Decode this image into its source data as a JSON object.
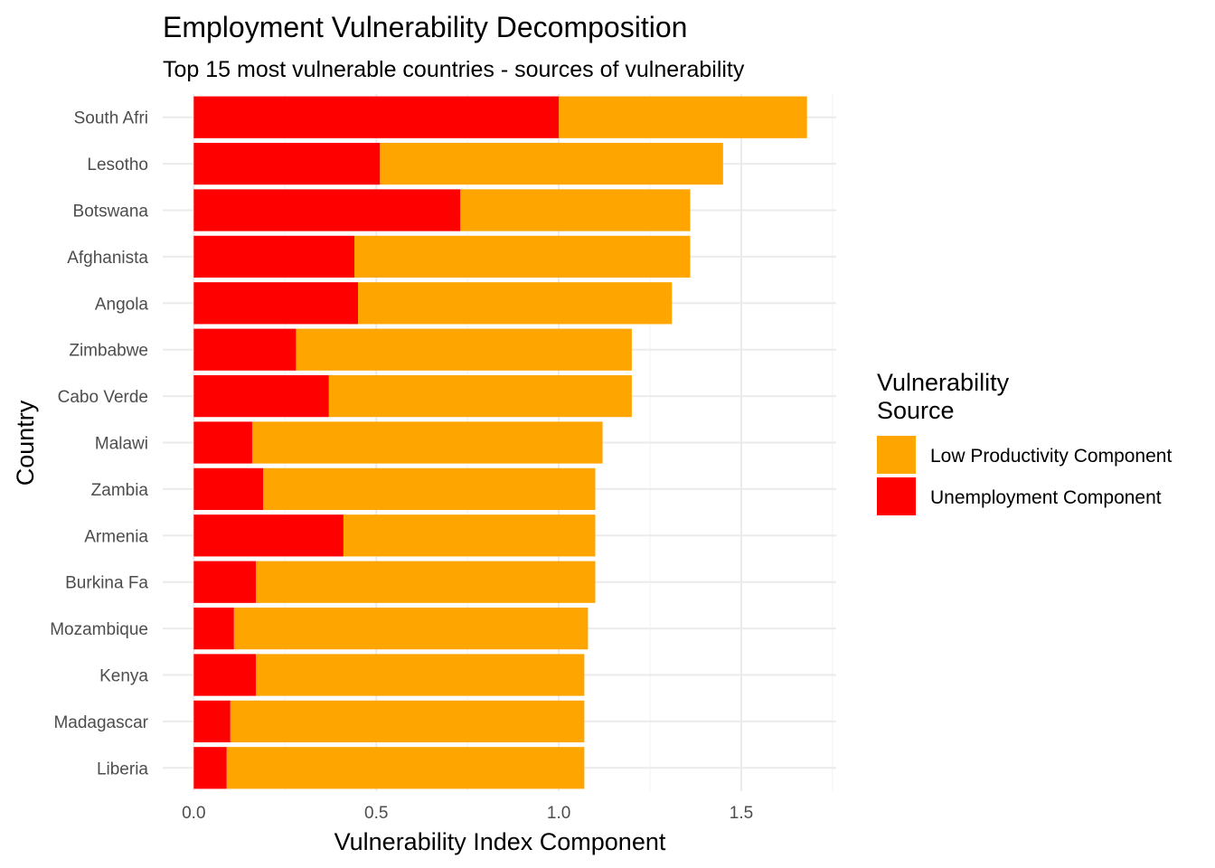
{
  "chart_data": {
    "type": "bar",
    "orientation": "horizontal",
    "stacked": true,
    "title": "Employment Vulnerability Decomposition",
    "subtitle": "Top 15 most vulnerable countries - sources of vulnerability",
    "xlabel": "Vulnerability Index Component",
    "ylabel": "Country",
    "xlim": [
      -0.085,
      1.76
    ],
    "x_ticks": [
      0.0,
      0.5,
      1.0,
      1.5
    ],
    "x_tick_labels": [
      "0.0",
      "0.5",
      "1.0",
      "1.5"
    ],
    "grid": true,
    "legend_position": "right",
    "legend_title_lines": [
      "Vulnerability",
      "Source"
    ],
    "categories": [
      "South Afri",
      "Lesotho",
      "Botswana",
      "Afghanista",
      "Angola",
      "Zimbabwe",
      "Cabo Verde",
      "Malawi",
      "Zambia",
      "Armenia",
      "Burkina Fa",
      "Mozambique",
      "Kenya",
      "Madagascar",
      "Liberia"
    ],
    "series": [
      {
        "name": "Unemployment Component",
        "color": "#ff0000",
        "values": [
          1.0,
          0.51,
          0.73,
          0.44,
          0.45,
          0.28,
          0.37,
          0.16,
          0.19,
          0.41,
          0.17,
          0.11,
          0.17,
          0.1,
          0.09
        ]
      },
      {
        "name": "Low Productivity Component",
        "color": "#ffa500",
        "values": [
          0.68,
          0.94,
          0.63,
          0.92,
          0.86,
          0.92,
          0.83,
          0.96,
          0.91,
          0.69,
          0.93,
          0.97,
          0.9,
          0.97,
          0.98
        ]
      }
    ],
    "legend_order": [
      "Low Productivity Component",
      "Unemployment Component"
    ]
  }
}
